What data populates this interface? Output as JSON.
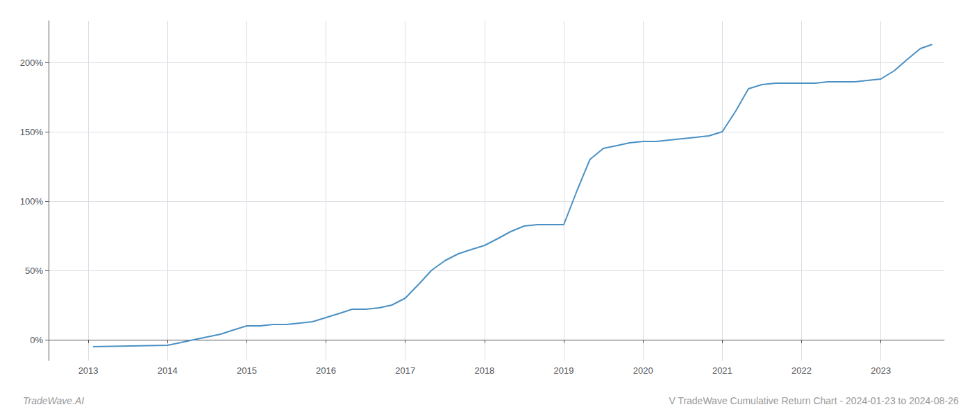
{
  "chart_data": {
    "type": "line",
    "title": "V TradeWave Cumulative Return Chart - 2024-01-23 to 2024-08-26",
    "annotations": [
      "TradeWave.AI"
    ],
    "color": "#4a90c4",
    "grid": true,
    "x": [
      2013.06,
      2014.0,
      2014.17,
      2014.33,
      2014.5,
      2014.67,
      2014.83,
      2015.0,
      2015.17,
      2015.33,
      2015.5,
      2015.67,
      2015.83,
      2016.0,
      2016.17,
      2016.33,
      2016.5,
      2016.67,
      2016.83,
      2017.0,
      2017.17,
      2017.33,
      2017.5,
      2017.67,
      2017.83,
      2018.0,
      2018.17,
      2018.33,
      2018.5,
      2018.67,
      2018.83,
      2019.0,
      2019.17,
      2019.33,
      2019.5,
      2019.67,
      2019.83,
      2020.0,
      2020.17,
      2020.33,
      2020.5,
      2020.67,
      2020.83,
      2021.0,
      2021.17,
      2021.33,
      2021.5,
      2021.67,
      2021.83,
      2022.0,
      2022.17,
      2022.33,
      2022.5,
      2022.67,
      2022.83,
      2023.0,
      2023.17,
      2023.33,
      2023.5,
      2023.65
    ],
    "values": [
      -5,
      -4,
      -2,
      0,
      2,
      4,
      7,
      10,
      10,
      11,
      11,
      12,
      13,
      16,
      19,
      22,
      22,
      23,
      25,
      30,
      40,
      50,
      57,
      62,
      65,
      68,
      73,
      78,
      82,
      83,
      83,
      83,
      108,
      130,
      138,
      140,
      142,
      143,
      143,
      144,
      145,
      146,
      147,
      150,
      165,
      181,
      184,
      185,
      185,
      185,
      185,
      186,
      186,
      186,
      187,
      188,
      194,
      202,
      210,
      213
    ],
    "xlim": [
      2012.5,
      2023.8
    ],
    "xticks": [
      2013,
      2014,
      2015,
      2016,
      2017,
      2018,
      2019,
      2020,
      2021,
      2022,
      2023
    ],
    "ylim": [
      -15,
      230
    ],
    "yticks": [
      {
        "value": 0,
        "label": "0%"
      },
      {
        "value": 50,
        "label": "50%"
      },
      {
        "value": 100,
        "label": "100%"
      },
      {
        "value": 150,
        "label": "150%"
      },
      {
        "value": 200,
        "label": "200%"
      }
    ]
  }
}
